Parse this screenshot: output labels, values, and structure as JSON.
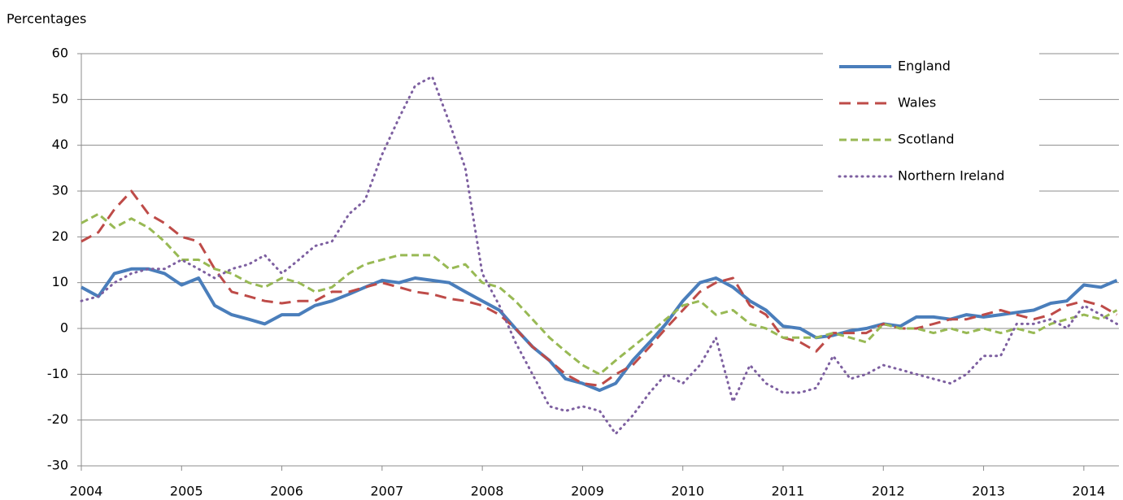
{
  "chart_data": {
    "type": "line",
    "y_label": "Percentages",
    "x": [
      2004,
      2004.17,
      2004.33,
      2004.5,
      2004.67,
      2004.83,
      2005,
      2005.17,
      2005.33,
      2005.5,
      2005.67,
      2005.83,
      2006,
      2006.17,
      2006.33,
      2006.5,
      2006.67,
      2006.83,
      2007,
      2007.17,
      2007.33,
      2007.5,
      2007.67,
      2007.83,
      2008,
      2008.17,
      2008.33,
      2008.5,
      2008.67,
      2008.83,
      2009,
      2009.17,
      2009.33,
      2009.5,
      2009.67,
      2009.83,
      2010,
      2010.17,
      2010.33,
      2010.5,
      2010.67,
      2010.83,
      2011,
      2011.17,
      2011.33,
      2011.5,
      2011.67,
      2011.83,
      2012,
      2012.17,
      2012.33,
      2012.5,
      2012.67,
      2012.83,
      2013,
      2013.17,
      2013.33,
      2013.5,
      2013.67,
      2013.83,
      2014,
      2014.17,
      2014.33
    ],
    "series": [
      {
        "name": "England",
        "color": "#4a7ebb",
        "style": "solid",
        "values": [
          9,
          7,
          12,
          13,
          13,
          12,
          9.5,
          11,
          5,
          3,
          2,
          1,
          3,
          3,
          5,
          6,
          7.5,
          9,
          10.5,
          10,
          11,
          10.5,
          10,
          8,
          6,
          4,
          0,
          -4,
          -7,
          -11,
          -12,
          -13.5,
          -12,
          -7,
          -3,
          1,
          6,
          10,
          11,
          9,
          6,
          4,
          0.5,
          0,
          -2,
          -1.5,
          -0.5,
          0,
          1,
          0.5,
          2.5,
          2.5,
          2,
          3,
          2.5,
          3,
          3.5,
          4,
          5.5,
          6,
          9.5,
          9,
          10.5
        ]
      },
      {
        "name": "Wales",
        "color": "#be4b48",
        "style": "dashed",
        "values": [
          19,
          21,
          26,
          30,
          25,
          23,
          20,
          19,
          13,
          8,
          7,
          6,
          5.5,
          6,
          6,
          8,
          8,
          9,
          10,
          9,
          8,
          7.5,
          6.5,
          6,
          5,
          3,
          0,
          -4,
          -7,
          -10,
          -12,
          -12.5,
          -10,
          -8,
          -4,
          0,
          4,
          8,
          10,
          11,
          5,
          3,
          -2,
          -3,
          -5,
          -1,
          -1,
          -1,
          1,
          0,
          0,
          1,
          2,
          2,
          3,
          4,
          3,
          2,
          3,
          5,
          6,
          5,
          3
        ]
      },
      {
        "name": "Scotland",
        "color": "#98b954",
        "style": "dash-short",
        "values": [
          23,
          25,
          22,
          24,
          22,
          19,
          15,
          15,
          13,
          12,
          10,
          9,
          11,
          10,
          8,
          9,
          12,
          14,
          15,
          16,
          16,
          16,
          13,
          14,
          10,
          9,
          6,
          2,
          -2,
          -5,
          -8,
          -10,
          -7,
          -4,
          -1,
          2,
          5,
          6,
          3,
          4,
          1,
          0,
          -2,
          -2,
          -2,
          -1,
          -2,
          -3,
          1,
          0,
          0,
          -1,
          0,
          -1,
          0,
          -1,
          0,
          -1,
          1,
          2,
          3,
          2,
          4
        ]
      },
      {
        "name": "Northern Ireland",
        "color": "#7d5fa0",
        "style": "dotted",
        "values": [
          6,
          7,
          10,
          12,
          13,
          13,
          15,
          13,
          11,
          13,
          14,
          16,
          12,
          15,
          18,
          19,
          25,
          28,
          38,
          46,
          53,
          55,
          45,
          35,
          12,
          5,
          -3,
          -10,
          -17,
          -18,
          -17,
          -18,
          -23,
          -19,
          -14,
          -10,
          -12,
          -8,
          -2,
          -16,
          -8,
          -12,
          -14,
          -14,
          -13,
          -6,
          -11,
          -10,
          -8,
          -9,
          -10,
          -11,
          -12,
          -10,
          -6,
          -6,
          1,
          1,
          2,
          0,
          5,
          3,
          1
        ]
      }
    ],
    "xlim": [
      2004,
      2014.35
    ],
    "xticks": [
      2004,
      2005,
      2006,
      2007,
      2008,
      2009,
      2010,
      2011,
      2012,
      2013,
      2014
    ],
    "ylim": [
      -30,
      60
    ],
    "yticks": [
      -30,
      -20,
      -10,
      0,
      10,
      20,
      30,
      40,
      50,
      60
    ],
    "grid": true,
    "legend": "top-right"
  }
}
